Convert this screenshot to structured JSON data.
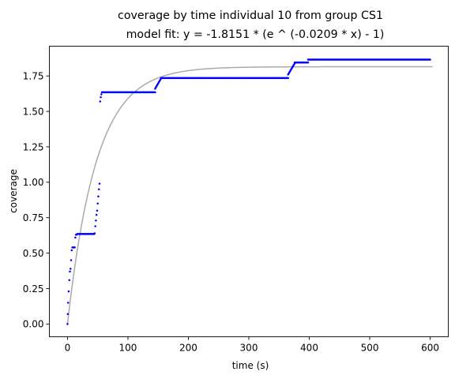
{
  "chart_data": {
    "type": "scatter",
    "title": "coverage by time individual 10 from group CS1",
    "subtitle": "model fit: y = -1.8151 * (e ^ (-0.0209 * x) - 1)",
    "xlabel": "time (s)",
    "ylabel": "coverage",
    "xlim": [
      -30,
      630
    ],
    "ylim": [
      -0.09,
      1.96
    ],
    "xticks": [
      0,
      100,
      200,
      300,
      400,
      500,
      600
    ],
    "xtick_labels": [
      "0",
      "100",
      "200",
      "300",
      "400",
      "500",
      "600"
    ],
    "yticks": [
      0.0,
      0.25,
      0.5,
      0.75,
      1.0,
      1.25,
      1.5,
      1.75
    ],
    "ytick_labels": [
      "0.00",
      "0.25",
      "0.50",
      "0.75",
      "1.00",
      "1.25",
      "1.50",
      "1.75"
    ],
    "grid": false,
    "series": [
      {
        "kind": "scatter",
        "color": "#0000ff",
        "points": [
          [
            0,
            0.0
          ],
          [
            0.5,
            0.07
          ],
          [
            1,
            0.15
          ],
          [
            2,
            0.23
          ],
          [
            3,
            0.31
          ],
          [
            4,
            0.37
          ],
          [
            5,
            0.39
          ],
          [
            6,
            0.45
          ],
          [
            7,
            0.52
          ],
          [
            8,
            0.54
          ],
          [
            9,
            0.54
          ],
          [
            10,
            0.54
          ],
          [
            11,
            0.54
          ],
          [
            12,
            0.54
          ],
          [
            13,
            0.61
          ],
          [
            14,
            0.63
          ],
          [
            15,
            0.63
          ],
          [
            16,
            0.635
          ],
          [
            17,
            0.635
          ],
          [
            18,
            0.635
          ],
          [
            19,
            0.635
          ],
          [
            20,
            0.635
          ],
          [
            21,
            0.635
          ],
          [
            22,
            0.635
          ],
          [
            23,
            0.635
          ],
          [
            24,
            0.635
          ],
          [
            25,
            0.635
          ],
          [
            26,
            0.635
          ],
          [
            27,
            0.635
          ],
          [
            28,
            0.635
          ],
          [
            29,
            0.635
          ],
          [
            30,
            0.635
          ],
          [
            31,
            0.635
          ],
          [
            32,
            0.635
          ],
          [
            33,
            0.635
          ],
          [
            34,
            0.635
          ],
          [
            35,
            0.635
          ],
          [
            36,
            0.635
          ],
          [
            37,
            0.635
          ],
          [
            38,
            0.635
          ],
          [
            39,
            0.635
          ],
          [
            40,
            0.635
          ],
          [
            41,
            0.635
          ],
          [
            42,
            0.635
          ],
          [
            43,
            0.635
          ],
          [
            44,
            0.635
          ],
          [
            45,
            0.64
          ],
          [
            46,
            0.69
          ],
          [
            47,
            0.73
          ],
          [
            48,
            0.77
          ],
          [
            49,
            0.8
          ],
          [
            50,
            0.85
          ],
          [
            51,
            0.9
          ],
          [
            52,
            0.95
          ],
          [
            53,
            0.99
          ],
          [
            54,
            1.57
          ],
          [
            55,
            1.6
          ],
          [
            56,
            1.62
          ],
          [
            57,
            1.635
          ]
        ]
      },
      {
        "kind": "scatter-plateau",
        "color": "#0000ff",
        "segments": [
          {
            "x_start": 57,
            "x_end": 145,
            "y": 1.635
          },
          {
            "x_start": 145,
            "x_end": 155,
            "y_start": 1.66,
            "y_end": 1.735
          },
          {
            "x_start": 155,
            "x_end": 365,
            "y": 1.735
          },
          {
            "x_start": 365,
            "x_end": 376,
            "y_start": 1.76,
            "y_end": 1.84
          },
          {
            "x_start": 376,
            "x_end": 398,
            "y": 1.845
          },
          {
            "x_start": 398,
            "x_end": 600,
            "y": 1.865
          }
        ],
        "step": 1
      },
      {
        "kind": "fit-line",
        "color": "#aaaaaa",
        "a": -1.8151,
        "b": -0.0209,
        "x_range": [
          0,
          605
        ]
      }
    ]
  }
}
